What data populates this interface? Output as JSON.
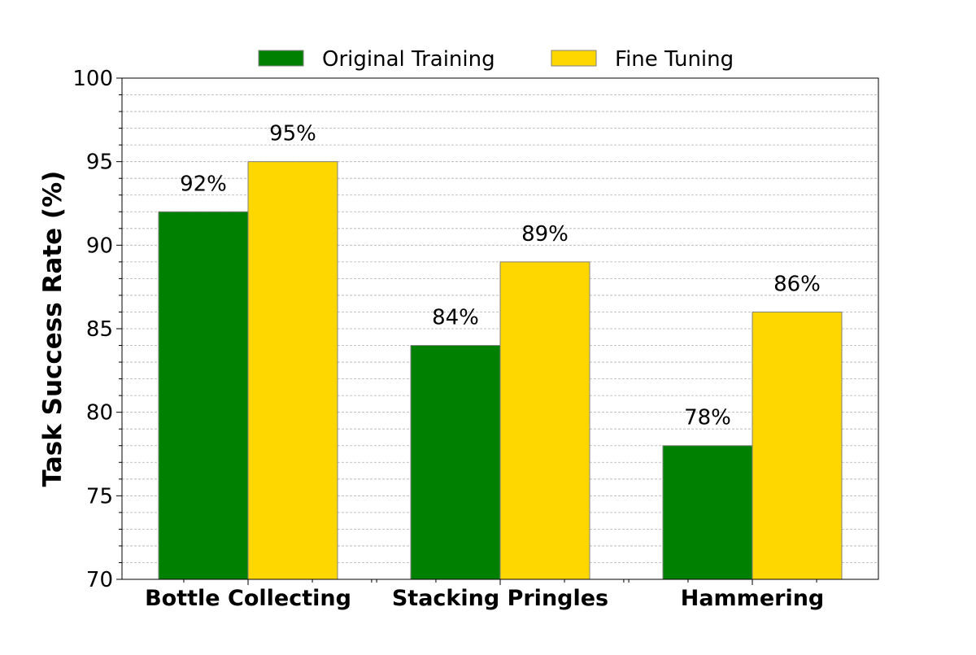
{
  "chart_data": {
    "type": "bar",
    "title": "",
    "xlabel": "",
    "ylabel": "Task Success Rate (%)",
    "ylim": [
      70,
      100
    ],
    "y_major_ticks": [
      70,
      75,
      80,
      85,
      90,
      95,
      100
    ],
    "y_minor_tick_step": 1,
    "grid": "y-major-and-minor-dashed",
    "legend_placement": "top-center",
    "categories": [
      "Bottle Collecting",
      "Stacking Pringles",
      "Hammering"
    ],
    "series": [
      {
        "name": "Original Training",
        "color": "#008000",
        "values": [
          92,
          84,
          78
        ],
        "labels": [
          "92%",
          "84%",
          "78%"
        ]
      },
      {
        "name": "Fine Tuning",
        "color": "#FFD700",
        "values": [
          95,
          89,
          86
        ],
        "labels": [
          "95%",
          "89%",
          "86%"
        ]
      }
    ]
  }
}
